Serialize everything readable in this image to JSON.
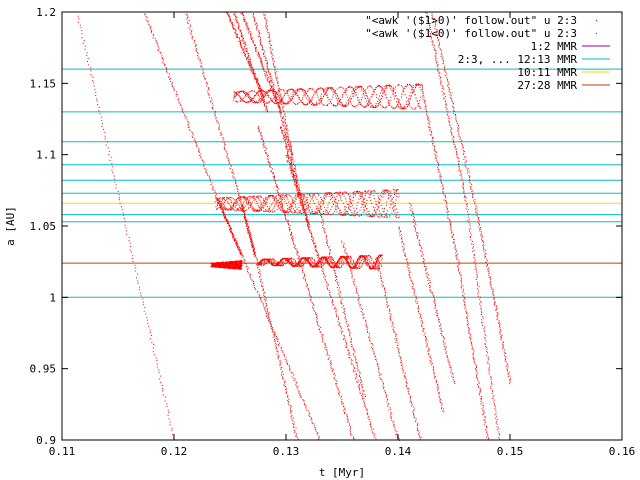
{
  "chart_data": {
    "type": "scatter",
    "xlabel": "t [Myr]",
    "ylabel": "a [AU]",
    "xlim": [
      0.11,
      0.16
    ],
    "ylim": [
      0.9,
      1.2
    ],
    "x_ticks": [
      "0.11",
      "0.12",
      "0.13",
      "0.14",
      "0.15",
      "0.16"
    ],
    "y_ticks": [
      "0.9",
      "0.95",
      "1",
      "1.05",
      "1.1",
      "1.15",
      "1.2"
    ],
    "grid": false,
    "legend_position": "top-right",
    "legend": [
      {
        "label": "\"<awk '($1>0)' follow.out\" u 2:3",
        "style": "points",
        "color": "#ff0000"
      },
      {
        "label": "\"<awk '($1<0)' follow.out\" u 2:3",
        "style": "points",
        "color": "#ff0000"
      },
      {
        "label": "1:2 MMR",
        "style": "line",
        "color": "#a000a0"
      },
      {
        "label": "2:3, ... 12:13 MMR",
        "style": "line",
        "color": "#00c0c0"
      },
      {
        "label": "10:11 MMR",
        "style": "line",
        "color": "#ffd700"
      },
      {
        "label": "27:28 MMR",
        "style": "line",
        "color": "#c04000"
      }
    ],
    "resonance_lines": [
      {
        "group": "2:3, ... 12:13 MMR",
        "color": "#00c0c0",
        "y": [
          1.0,
          1.053,
          1.058,
          1.073,
          1.082,
          1.093,
          1.109,
          1.13,
          1.16
        ]
      },
      {
        "group": "10:11 MMR",
        "color": "#ffd700",
        "y": [
          1.066
        ]
      },
      {
        "group": "27:28 MMR",
        "color": "#c04000",
        "y": [
          1.024
        ]
      }
    ],
    "point_color": "#ff0000",
    "tracks": [
      {
        "x": [
          0.1113,
          0.12
        ],
        "y": [
          1.2,
          0.9
        ]
      },
      {
        "x": [
          0.1173,
          0.124
        ],
        "y": [
          1.2,
          1.066
        ]
      },
      {
        "x": [
          0.124,
          0.126
        ],
        "y": [
          1.066,
          1.03
        ]
      },
      {
        "x": [
          0.126,
          0.133
        ],
        "y": [
          1.03,
          0.9
        ]
      },
      {
        "x": [
          0.121,
          0.126
        ],
        "y": [
          1.2,
          1.065
        ]
      },
      {
        "x": [
          0.126,
          0.1272
        ],
        "y": [
          1.065,
          1.03
        ]
      },
      {
        "x": [
          0.1272,
          0.131
        ],
        "y": [
          1.03,
          0.9
        ]
      },
      {
        "x": [
          0.1247,
          0.128
        ],
        "y": [
          1.2,
          1.14
        ]
      },
      {
        "x": [
          0.1253,
          0.1283
        ],
        "y": [
          1.2,
          1.13
        ]
      },
      {
        "x": [
          0.126,
          0.1295
        ],
        "y": [
          1.2,
          1.13
        ]
      },
      {
        "x": [
          0.127,
          0.1305
        ],
        "y": [
          1.2,
          1.1
        ]
      },
      {
        "x": [
          0.128,
          0.131
        ],
        "y": [
          1.2,
          1.08
        ]
      },
      {
        "x": [
          0.1295,
          0.132
        ],
        "y": [
          1.12,
          1.05
        ]
      },
      {
        "x": [
          0.1275,
          0.1312
        ],
        "y": [
          1.12,
          1.025
        ]
      },
      {
        "x": [
          0.1312,
          0.136
        ],
        "y": [
          1.025,
          0.9
        ]
      },
      {
        "x": [
          0.13,
          0.133
        ],
        "y": [
          1.1,
          1.025
        ]
      },
      {
        "x": [
          0.133,
          0.138
        ],
        "y": [
          1.025,
          0.9
        ]
      },
      {
        "x": [
          0.133,
          0.137
        ],
        "y": [
          1.06,
          0.93
        ]
      },
      {
        "x": [
          0.135,
          0.14
        ],
        "y": [
          1.04,
          0.9
        ]
      },
      {
        "x": [
          0.138,
          0.142
        ],
        "y": [
          1.028,
          0.9
        ]
      },
      {
        "x": [
          0.14,
          0.144
        ],
        "y": [
          1.05,
          0.92
        ]
      },
      {
        "x": [
          0.141,
          0.145
        ],
        "y": [
          1.066,
          0.94
        ]
      },
      {
        "x": [
          0.142,
          0.1452
        ],
        "y": [
          1.15,
          1.03
        ]
      },
      {
        "x": [
          0.1452,
          0.148
        ],
        "y": [
          1.03,
          0.9
        ]
      },
      {
        "x": [
          0.1425,
          0.146
        ],
        "y": [
          1.2,
          1.07
        ]
      },
      {
        "x": [
          0.146,
          0.149
        ],
        "y": [
          1.07,
          0.9
        ]
      },
      {
        "x": [
          0.143,
          0.147
        ],
        "y": [
          1.2,
          1.06
        ]
      },
      {
        "x": [
          0.147,
          0.15
        ],
        "y": [
          1.06,
          0.94
        ]
      }
    ],
    "bands": [
      {
        "x": [
          0.1253,
          0.142
        ],
        "y": [
          1.132,
          1.15
        ]
      },
      {
        "x": [
          0.1237,
          0.14
        ],
        "y": [
          1.056,
          1.076
        ]
      },
      {
        "x": [
          0.1275,
          0.1385
        ],
        "y": [
          1.02,
          1.03
        ]
      },
      {
        "x": [
          0.1233,
          0.126
        ],
        "y": [
          1.02,
          1.026
        ]
      }
    ]
  }
}
